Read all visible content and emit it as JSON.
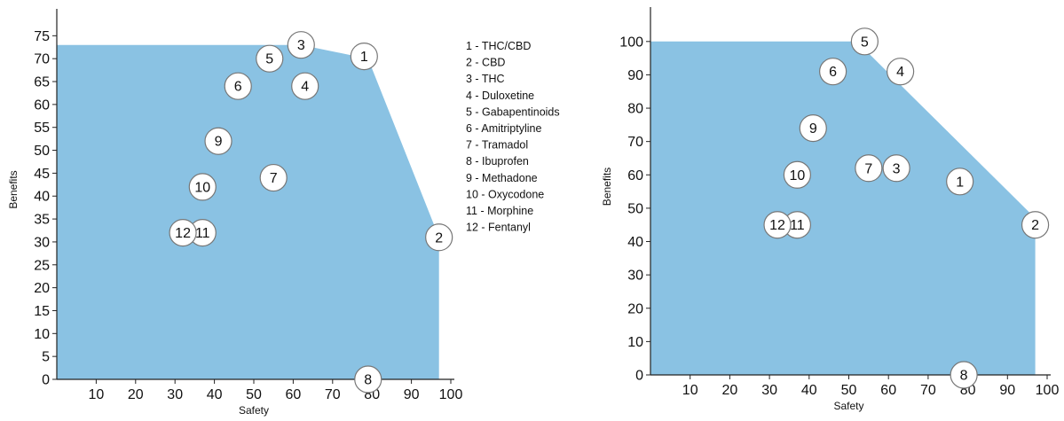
{
  "colors": {
    "frontier_fill": "#8ac2e3",
    "marker_fill": "#ffffff",
    "marker_stroke": "#777777",
    "axis": "#222222"
  },
  "chart_data": [
    {
      "type": "area",
      "xlabel": "Safety",
      "ylabel": "Benefits",
      "xlim": [
        0,
        100
      ],
      "ylim": [
        0,
        77
      ],
      "x_ticks": [
        "10",
        "20",
        "30",
        "40",
        "50",
        "60",
        "70",
        "80",
        "90",
        "100"
      ],
      "y_ticks": [
        "0",
        "5",
        "10",
        "15",
        "20",
        "25",
        "30",
        "35",
        "40",
        "45",
        "50",
        "55",
        "60",
        "65",
        "70",
        "75"
      ],
      "frontier": [
        [
          0,
          73
        ],
        [
          62,
          73
        ],
        [
          79,
          70
        ],
        [
          97,
          31
        ],
        [
          97,
          0
        ],
        [
          0,
          0
        ]
      ],
      "points": [
        {
          "label": "1",
          "x": 78,
          "y": 70.5
        },
        {
          "label": "2",
          "x": 97,
          "y": 31
        },
        {
          "label": "3",
          "x": 62,
          "y": 73
        },
        {
          "label": "4",
          "x": 63,
          "y": 64
        },
        {
          "label": "5",
          "x": 54,
          "y": 70
        },
        {
          "label": "6",
          "x": 46,
          "y": 64
        },
        {
          "label": "7",
          "x": 55,
          "y": 44
        },
        {
          "label": "8",
          "x": 79,
          "y": 0
        },
        {
          "label": "9",
          "x": 41,
          "y": 52
        },
        {
          "label": "10",
          "x": 37,
          "y": 42
        },
        {
          "label": "11",
          "x": 37,
          "y": 32
        },
        {
          "label": "12",
          "x": 32,
          "y": 32
        }
      ],
      "legend": [
        "1 - THC/CBD",
        "2 - CBD",
        "3 - THC",
        "4 - Duloxetine",
        "5 - Gabapentinoids",
        "6 - Amitriptyline",
        "7 - Tramadol",
        "8 - Ibuprofen",
        "9 - Methadone",
        "10 - Oxycodone",
        "11 - Morphine",
        "12 - Fentanyl"
      ],
      "legend_position": "right"
    },
    {
      "type": "area",
      "xlabel": "Safety",
      "ylabel": "Benefits",
      "xlim": [
        0,
        100
      ],
      "ylim": [
        0,
        105
      ],
      "x_ticks": [
        "10",
        "20",
        "30",
        "40",
        "50",
        "60",
        "70",
        "80",
        "90",
        "100"
      ],
      "y_ticks": [
        "0",
        "10",
        "20",
        "30",
        "40",
        "50",
        "60",
        "70",
        "80",
        "90",
        "100"
      ],
      "frontier": [
        [
          0,
          100
        ],
        [
          52,
          100
        ],
        [
          97,
          47
        ],
        [
          97,
          0
        ],
        [
          0,
          0
        ]
      ],
      "points": [
        {
          "label": "1",
          "x": 78,
          "y": 58
        },
        {
          "label": "2",
          "x": 97,
          "y": 45
        },
        {
          "label": "3",
          "x": 62,
          "y": 62
        },
        {
          "label": "4",
          "x": 63,
          "y": 91
        },
        {
          "label": "5",
          "x": 54,
          "y": 100
        },
        {
          "label": "6",
          "x": 46,
          "y": 91
        },
        {
          "label": "7",
          "x": 55,
          "y": 62
        },
        {
          "label": "8",
          "x": 79,
          "y": 0
        },
        {
          "label": "9",
          "x": 41,
          "y": 74
        },
        {
          "label": "10",
          "x": 37,
          "y": 60
        },
        {
          "label": "11",
          "x": 37,
          "y": 45
        },
        {
          "label": "12",
          "x": 32,
          "y": 45
        }
      ]
    }
  ]
}
